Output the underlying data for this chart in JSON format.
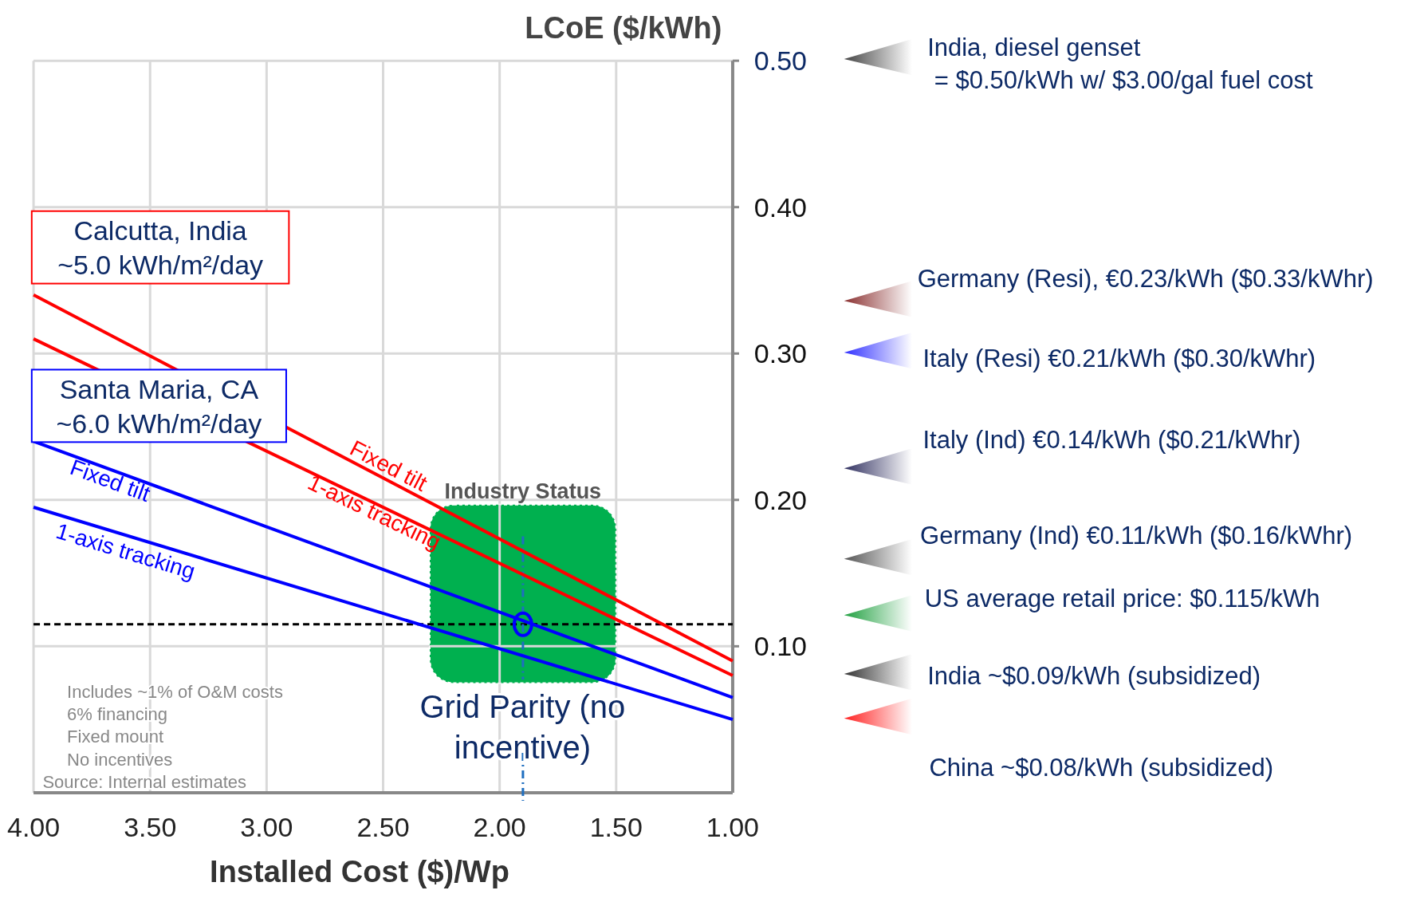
{
  "chart_data": {
    "type": "line",
    "xlabel": "Installed Cost ($)/Wp",
    "ylabel": "LCoE  ($/kWh)",
    "xlim": [
      4,
      1
    ],
    "xticks": [
      {
        "value": 4,
        "label": "4.00"
      },
      {
        "value": 3.5,
        "label": "3.50"
      },
      {
        "value": 3,
        "label": "3.00"
      },
      {
        "value": 2.5,
        "label": "2.50"
      },
      {
        "value": 2,
        "label": "2.00"
      },
      {
        "value": 1.5,
        "label": "1.50"
      },
      {
        "value": 1,
        "label": "1.00"
      }
    ],
    "ylim": [
      0,
      0.5
    ],
    "yticks": [
      {
        "value": 0.1,
        "label": "0.10"
      },
      {
        "value": 0.2,
        "label": "0.20"
      },
      {
        "value": 0.3,
        "label": "0.30"
      },
      {
        "value": 0.4,
        "label": "0.40"
      },
      {
        "value": 0.5,
        "label": "0.50"
      }
    ],
    "grid": true,
    "series": [
      {
        "name": "Fixed tilt",
        "color": "#ff0000",
        "x": [
          4,
          1
        ],
        "values": [
          0.34,
          0.09
        ]
      },
      {
        "name": "1-axis tracking",
        "color": "#ff0000",
        "x": [
          4,
          1
        ],
        "values": [
          0.31,
          0.08
        ]
      },
      {
        "name": "Fixed tilt",
        "color": "#0000ff",
        "x": [
          4,
          1
        ],
        "values": [
          0.24,
          0.065
        ]
      },
      {
        "name": "1-axis tracking",
        "color": "#0000ff",
        "x": [
          4,
          1
        ],
        "values": [
          0.195,
          0.05
        ]
      },
      {
        "type": "scatter",
        "color": "#0000ff",
        "x": [
          1.9
        ],
        "values": [
          0.115
        ],
        "marker": "circle"
      }
    ],
    "ref_lines": [
      {
        "axis": "y",
        "value": 0.115,
        "color": "#000000",
        "line_style": "dashed"
      },
      {
        "axis": "x",
        "value": 1.9,
        "color": "#1f6fc0",
        "line_style": "dashdot"
      }
    ],
    "bands": [
      {
        "axis": "x",
        "from": 2.3,
        "to": 1.5,
        "label": "Industry Status",
        "color": "#00b04f"
      }
    ],
    "annotations": [
      "Calcutta, India\n~5.0 kWh/m²/day",
      "Santa Maria, CA\n~6.0 kWh/m²/day",
      "Grid Parity (no\nincentive)",
      "Includes ~1% of O&M costs",
      "6% financing",
      "Fixed mount",
      "No incentives",
      "Source: Internal estimates",
      "India, diesel genset\n = $0.50/kWh w/ $3.00/gal fuel cost",
      "Germany (Resi), €0.23/kWh ($0.33/kWhr)",
      "Italy (Resi) €0.21/kWh ($0.30/kWhr)",
      "Italy (Ind) €0.14/kWh ($0.21/kWhr)",
      "Germany (Ind) €0.11/kWh ($0.16/kWhr)",
      "US average retail price: $0.115/kWh",
      "India ~$0.09/kWh (subsidized)",
      "China ~$0.08/kWh (subsidized)"
    ]
  }
}
